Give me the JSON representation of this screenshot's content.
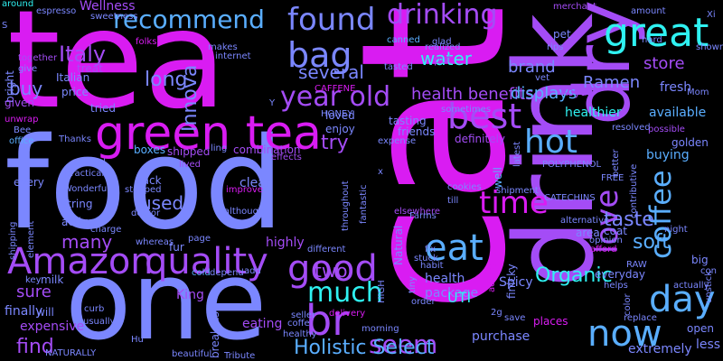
{
  "palette": {
    "pink": "#d91cf2",
    "violet": "#a44cf6",
    "blue": "#7b87ff",
    "sky": "#5aaeff",
    "cyan": "#2ff1f1",
    "bg": "#000000"
  },
  "words": [
    {
      "id": "cat",
      "text": "cat",
      "color": "#d91cf2"
    },
    {
      "id": "tea",
      "text": "tea",
      "color": "#d91cf2"
    },
    {
      "id": "food",
      "text": "food",
      "color": "#7b87ff"
    },
    {
      "id": "one",
      "text": "one",
      "color": "#7b87ff"
    },
    {
      "id": "drink",
      "text": "drink",
      "color": "#a44cf6"
    },
    {
      "id": "dry",
      "text": "dry",
      "color": "#a44cf6"
    },
    {
      "id": "green-tea",
      "text": "green tea",
      "color": "#d91cf2"
    },
    {
      "id": "amazon",
      "text": "Amazon",
      "color": "#a44cf6"
    },
    {
      "id": "quality",
      "text": "quality",
      "color": "#a44cf6"
    },
    {
      "id": "good",
      "text": "good",
      "color": "#a44cf6"
    },
    {
      "id": "found",
      "text": "found",
      "color": "#7b87ff"
    },
    {
      "id": "drinking",
      "text": "drinking",
      "color": "#a44cf6"
    },
    {
      "id": "great",
      "text": "great",
      "color": "#2ff1f1"
    },
    {
      "id": "recommend",
      "text": "recommend",
      "color": "#5aaeff"
    },
    {
      "id": "bag",
      "text": "bag",
      "color": "#7b87ff"
    },
    {
      "id": "best",
      "text": "best",
      "color": "#a44cf6"
    },
    {
      "id": "year-old",
      "text": "year old",
      "color": "#a44cf6"
    },
    {
      "id": "br",
      "text": "br",
      "color": "#a44cf6"
    },
    {
      "id": "much",
      "text": "much",
      "color": "#2ff1f1"
    },
    {
      "id": "seem",
      "text": "seem",
      "color": "#a44cf6"
    },
    {
      "id": "eat",
      "text": "eat",
      "color": "#5aaeff"
    },
    {
      "id": "hot",
      "text": "hot",
      "color": "#5aaeff"
    },
    {
      "id": "time",
      "text": "time",
      "color": "#d91cf2"
    },
    {
      "id": "love",
      "text": "love",
      "color": "#a44cf6"
    },
    {
      "id": "coffee",
      "text": "coffee",
      "color": "#5aaeff"
    },
    {
      "id": "day",
      "text": "day",
      "color": "#5aaeff"
    },
    {
      "id": "now",
      "text": "now",
      "color": "#5aaeff"
    },
    {
      "id": "holistic-select",
      "text": "Holistic Select",
      "color": "#5aaeff"
    },
    {
      "id": "italy",
      "text": "Italy",
      "color": "#a44cf6"
    },
    {
      "id": "several",
      "text": "several",
      "color": "#7b87ff"
    },
    {
      "id": "water",
      "text": "water",
      "color": "#2ff1f1"
    },
    {
      "id": "long",
      "text": "long",
      "color": "#7b87ff"
    },
    {
      "id": "innova",
      "text": "Innova",
      "color": "#7b87ff"
    },
    {
      "id": "try",
      "text": "try",
      "color": "#a44cf6"
    },
    {
      "id": "health-benefits",
      "text": "health benefits",
      "color": "#a44cf6"
    },
    {
      "id": "brand",
      "text": "brand",
      "color": "#7b87ff"
    },
    {
      "id": "ramen",
      "text": "Ramen",
      "color": "#7b87ff"
    },
    {
      "id": "store",
      "text": "store",
      "color": "#a44cf6"
    },
    {
      "id": "displays",
      "text": "displays",
      "color": "#5aaeff"
    },
    {
      "id": "used",
      "text": "used",
      "color": "#7b87ff"
    },
    {
      "id": "many",
      "text": "many",
      "color": "#a44cf6"
    },
    {
      "id": "buy",
      "text": "buy",
      "color": "#7b87ff"
    },
    {
      "id": "two",
      "text": "two",
      "color": "#a44cf6"
    },
    {
      "id": "organic",
      "text": "Organic",
      "color": "#2ff1f1"
    },
    {
      "id": "taste",
      "text": "taste",
      "color": "#7b87ff"
    },
    {
      "id": "soft",
      "text": "soft",
      "color": "#5aaeff"
    },
    {
      "id": "sure",
      "text": "sure",
      "color": "#a44cf6"
    },
    {
      "id": "find",
      "text": "find",
      "color": "#a44cf6"
    },
    {
      "id": "wellness",
      "text": "Wellness",
      "color": "#a44cf6"
    },
    {
      "id": "espresso",
      "text": "espresso",
      "color": "#7b87ff"
    },
    {
      "id": "around",
      "text": "around",
      "color": "#2ff1f1"
    },
    {
      "id": "s",
      "text": "S",
      "color": "#7b87ff"
    },
    {
      "id": "bright",
      "text": "bright",
      "color": "#7b87ff"
    },
    {
      "id": "give",
      "text": "give",
      "color": "#7b87ff"
    },
    {
      "id": "together",
      "text": "together",
      "color": "#a44cf6"
    },
    {
      "id": "sweetness",
      "text": "sweetness",
      "color": "#7b87ff"
    },
    {
      "id": "given",
      "text": "given",
      "color": "#a44cf6"
    },
    {
      "id": "unwrap",
      "text": "unwrap",
      "color": "#d91cf2"
    },
    {
      "id": "bee",
      "text": "Bee",
      "color": "#7b87ff"
    },
    {
      "id": "office",
      "text": "office",
      "color": "#5aaeff"
    },
    {
      "id": "italian",
      "text": "Italian",
      "color": "#7b87ff"
    },
    {
      "id": "treat",
      "text": "treat",
      "color": "#a44cf6"
    },
    {
      "id": "price",
      "text": "price",
      "color": "#7b87ff"
    },
    {
      "id": "tried",
      "text": "tried",
      "color": "#7b87ff"
    },
    {
      "id": "boxes",
      "text": "boxes",
      "color": "#5aaeff"
    },
    {
      "id": "shipped",
      "text": "shipped",
      "color": "#a44cf6"
    },
    {
      "id": "combination",
      "text": "combination",
      "color": "#a44cf6"
    },
    {
      "id": "folks",
      "text": "folks",
      "color": "#d91cf2"
    },
    {
      "id": "makes",
      "text": "makes",
      "color": "#7b87ff"
    },
    {
      "id": "internet",
      "text": "internet",
      "color": "#7b87ff"
    },
    {
      "id": "caffene",
      "text": "CAFFENE",
      "color": "#d91cf2"
    },
    {
      "id": "loved",
      "text": "loved",
      "color": "#7b87ff"
    },
    {
      "id": "enjoy",
      "text": "enjoy",
      "color": "#7b87ff"
    },
    {
      "id": "honey",
      "text": "HONEY",
      "color": "#7b87ff"
    },
    {
      "id": "tasting",
      "text": "tasting",
      "color": "#7b87ff"
    },
    {
      "id": "friends",
      "text": "friends",
      "color": "#7b87ff"
    },
    {
      "id": "tasted",
      "text": "tasted",
      "color": "#7b87ff"
    },
    {
      "id": "canned",
      "text": "canned",
      "color": "#5aaeff"
    },
    {
      "id": "glad",
      "text": "glad",
      "color": "#7b87ff"
    },
    {
      "id": "put",
      "text": "put",
      "color": "#a44cf6"
    },
    {
      "id": "realized",
      "text": "realized",
      "color": "#7b87ff"
    },
    {
      "id": "sometimes",
      "text": "sometimes",
      "color": "#7b87ff"
    },
    {
      "id": "merchant",
      "text": "merchant",
      "color": "#a44cf6"
    },
    {
      "id": "pet",
      "text": "pet",
      "color": "#7b87ff"
    },
    {
      "id": "rips",
      "text": "rips",
      "color": "#7b87ff"
    },
    {
      "id": "vet",
      "text": "vet",
      "color": "#7b87ff"
    },
    {
      "id": "royal",
      "text": "Royal",
      "color": "#a44cf6"
    },
    {
      "id": "healthier",
      "text": "healthier",
      "color": "#2ff1f1"
    },
    {
      "id": "definitely",
      "text": "definitely",
      "color": "#a44cf6"
    },
    {
      "id": "expense",
      "text": "expense",
      "color": "#7b87ff"
    },
    {
      "id": "thanks",
      "text": "Thanks",
      "color": "#7b87ff"
    },
    {
      "id": "kid",
      "text": "kid",
      "color": "#7b87ff"
    },
    {
      "id": "practical",
      "text": "practical",
      "color": "#7b87ff"
    },
    {
      "id": "wonderful",
      "text": "Wonderful",
      "color": "#7b87ff"
    },
    {
      "id": "every",
      "text": "every",
      "color": "#7b87ff"
    },
    {
      "id": "string",
      "text": "string",
      "color": "#7b87ff"
    },
    {
      "id": "back",
      "text": "back",
      "color": "#7b87ff"
    },
    {
      "id": "stopped",
      "text": "stopped",
      "color": "#7b87ff"
    },
    {
      "id": "clean",
      "text": "clean",
      "color": "#7b87ff"
    },
    {
      "id": "improve",
      "text": "improve",
      "color": "#d91cf2"
    },
    {
      "id": "effects",
      "text": "effects",
      "color": "#a44cf6"
    },
    {
      "id": "lived",
      "text": "lived",
      "color": "#a44cf6"
    },
    {
      "id": "ling",
      "text": "ling",
      "color": "#7b87ff"
    },
    {
      "id": "active",
      "text": "active",
      "color": "#7b87ff"
    },
    {
      "id": "charge",
      "text": "charge",
      "color": "#7b87ff"
    },
    {
      "id": "doctor",
      "text": "doctor",
      "color": "#7b87ff"
    },
    {
      "id": "although",
      "text": "although",
      "color": "#7b87ff"
    },
    {
      "id": "throughout",
      "text": "throughout",
      "color": "#7b87ff"
    },
    {
      "id": "fantastic",
      "text": "fantastic",
      "color": "#7b87ff"
    },
    {
      "id": "elsewhere",
      "text": "elsewhere",
      "color": "#a44cf6"
    },
    {
      "id": "natural",
      "text": "Natural",
      "color": "#7b87ff"
    },
    {
      "id": "cookies",
      "text": "cookies",
      "color": "#7b87ff"
    },
    {
      "id": "till",
      "text": "till",
      "color": "#7b87ff"
    },
    {
      "id": "farms",
      "text": "Farms",
      "color": "#7b87ff"
    },
    {
      "id": "fix",
      "text": "fix",
      "color": "#7b87ff"
    },
    {
      "id": "stuck",
      "text": "stuck",
      "color": "#7b87ff"
    },
    {
      "id": "habit",
      "text": "habit",
      "color": "#7b87ff"
    },
    {
      "id": "whereas",
      "text": "whereas",
      "color": "#7b87ff"
    },
    {
      "id": "fur",
      "text": "fur",
      "color": "#7b87ff"
    },
    {
      "id": "page",
      "text": "page",
      "color": "#7b87ff"
    },
    {
      "id": "cold",
      "text": "cold",
      "color": "#5aaeff"
    },
    {
      "id": "depend",
      "text": "depend",
      "color": "#7b87ff"
    },
    {
      "id": "add",
      "text": "add",
      "color": "#7b87ff"
    },
    {
      "id": "highly",
      "text": "highly",
      "color": "#a44cf6"
    },
    {
      "id": "different",
      "text": "different",
      "color": "#7b87ff"
    },
    {
      "id": "tiny",
      "text": "tiny",
      "color": "#7b87ff"
    },
    {
      "id": "health",
      "text": "health",
      "color": "#7b87ff"
    },
    {
      "id": "package",
      "text": "package",
      "color": "#7b87ff"
    },
    {
      "id": "uti",
      "text": "UTI",
      "color": "#2ff1f1"
    },
    {
      "id": "high",
      "text": "HIGH",
      "color": "#7b87ff"
    },
    {
      "id": "finicky",
      "text": "finicky",
      "color": "#7b87ff"
    },
    {
      "id": "spicy",
      "text": "Spicy",
      "color": "#7b87ff"
    },
    {
      "id": "milk",
      "text": "milk",
      "color": "#7b87ff"
    },
    {
      "id": "key",
      "text": "key",
      "color": "#7b87ff"
    },
    {
      "id": "finally",
      "text": "finally",
      "color": "#7b87ff"
    },
    {
      "id": "will",
      "text": "will",
      "color": "#7b87ff"
    },
    {
      "id": "expensive",
      "text": "expensive",
      "color": "#a44cf6"
    },
    {
      "id": "curb",
      "text": "curb",
      "color": "#7b87ff"
    },
    {
      "id": "usually",
      "text": "usually",
      "color": "#7b87ff"
    },
    {
      "id": "naturally",
      "text": "NATURALLY",
      "color": "#7b87ff"
    },
    {
      "id": "hu",
      "text": "Hu",
      "color": "#7b87ff"
    },
    {
      "id": "king",
      "text": "King",
      "color": "#a44cf6"
    },
    {
      "id": "breakfast",
      "text": "breakfast",
      "color": "#7b87ff"
    },
    {
      "id": "beautiful",
      "text": "beautiful",
      "color": "#7b87ff"
    },
    {
      "id": "tribute",
      "text": "Tribute",
      "color": "#7b87ff"
    },
    {
      "id": "eating",
      "text": "eating",
      "color": "#a44cf6"
    },
    {
      "id": "coffe",
      "text": "coffe",
      "color": "#7b87ff"
    },
    {
      "id": "seller",
      "text": "seller",
      "color": "#7b87ff"
    },
    {
      "id": "healthy",
      "text": "healthy",
      "color": "#7b87ff"
    },
    {
      "id": "delivery",
      "text": "delivery",
      "color": "#d91cf2"
    },
    {
      "id": "morning",
      "text": "morning",
      "color": "#7b87ff"
    },
    {
      "id": "order",
      "text": "order",
      "color": "#7b87ff"
    },
    {
      "id": "2g",
      "text": "2g",
      "color": "#7b87ff"
    },
    {
      "id": "purchase",
      "text": "purchase",
      "color": "#7b87ff"
    },
    {
      "id": "save",
      "text": "save",
      "color": "#7b87ff"
    },
    {
      "id": "places",
      "text": "places",
      "color": "#d91cf2"
    },
    {
      "id": "adding",
      "text": "adding",
      "color": "#d91cf2"
    },
    {
      "id": "latest",
      "text": "latest",
      "color": "#7b87ff"
    },
    {
      "id": "shipment",
      "text": "shipment",
      "color": "#7b87ff"
    },
    {
      "id": "well",
      "text": "well",
      "color": "#5aaeff"
    },
    {
      "id": "catechins",
      "text": "CATECHINS",
      "color": "#7b87ff"
    },
    {
      "id": "polyphenol",
      "text": "POLYPHENOL",
      "color": "#7b87ff"
    },
    {
      "id": "free",
      "text": "FREE",
      "color": "#7b87ff"
    },
    {
      "id": "better",
      "text": "better",
      "color": "#7b87ff"
    },
    {
      "id": "contributive",
      "text": "contributive",
      "color": "#7b87ff"
    },
    {
      "id": "buying",
      "text": "buying",
      "color": "#5aaeff"
    },
    {
      "id": "golden",
      "text": "golden",
      "color": "#7b87ff"
    },
    {
      "id": "possible",
      "text": "possible",
      "color": "#a44cf6"
    },
    {
      "id": "resolved",
      "text": "resolved",
      "color": "#7b87ff"
    },
    {
      "id": "available",
      "text": "available",
      "color": "#5aaeff"
    },
    {
      "id": "fresh",
      "text": "fresh",
      "color": "#7b87ff"
    },
    {
      "id": "mom",
      "text": "Mom",
      "color": "#7b87ff"
    },
    {
      "id": "hard",
      "text": "hard",
      "color": "#7b87ff"
    },
    {
      "id": "amount",
      "text": "amount",
      "color": "#7b87ff"
    },
    {
      "id": "xi",
      "text": "Xi",
      "color": "#7b87ff"
    },
    {
      "id": "shown",
      "text": "shown",
      "color": "#7b87ff"
    },
    {
      "id": "night",
      "text": "night",
      "color": "#7b87ff"
    },
    {
      "id": "alternative",
      "text": "alternative",
      "color": "#7b87ff"
    },
    {
      "id": "area",
      "text": "area",
      "color": "#7b87ff"
    },
    {
      "id": "coat",
      "text": "coat",
      "color": "#7b87ff"
    },
    {
      "id": "opinion",
      "text": "opinion",
      "color": "#7b87ff"
    },
    {
      "id": "afford",
      "text": "afford",
      "color": "#d91cf2"
    },
    {
      "id": "raw",
      "text": "RAW",
      "color": "#7b87ff"
    },
    {
      "id": "big",
      "text": "big",
      "color": "#7b87ff"
    },
    {
      "id": "con",
      "text": "con",
      "color": "#7b87ff"
    },
    {
      "id": "unstick",
      "text": "unstick",
      "color": "#7b87ff"
    },
    {
      "id": "everyday",
      "text": "everyday",
      "color": "#7b87ff"
    },
    {
      "id": "helps",
      "text": "helps",
      "color": "#7b87ff"
    },
    {
      "id": "actually",
      "text": "actually",
      "color": "#7b87ff"
    },
    {
      "id": "color",
      "text": "color",
      "color": "#7b87ff"
    },
    {
      "id": "replace",
      "text": "replace",
      "color": "#7b87ff"
    },
    {
      "id": "open",
      "text": "open",
      "color": "#7b87ff"
    },
    {
      "id": "extremely",
      "text": "extremely",
      "color": "#7b87ff"
    },
    {
      "id": "less",
      "text": "less",
      "color": "#7b87ff"
    },
    {
      "id": "shipping",
      "text": "shipping",
      "color": "#7b87ff"
    },
    {
      "id": "element",
      "text": "element",
      "color": "#7b87ff"
    },
    {
      "id": "y",
      "text": "Y",
      "color": "#7b87ff"
    },
    {
      "id": "x",
      "text": "x",
      "color": "#7b87ff"
    }
  ]
}
